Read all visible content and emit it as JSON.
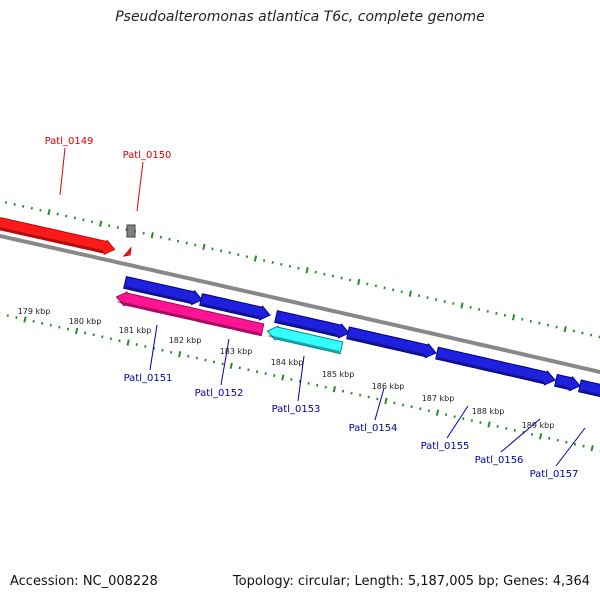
{
  "map": {
    "title": "Pseudoalteromonas atlantica T6c, complete genome",
    "accession": "Accession: NC_008228",
    "summary": "Topology: circular; Length: 5,187,005 bp; Genes: 4,364"
  },
  "colors": {
    "reverse_gene": "#ff1a1a",
    "forward_gene": "#1f1fe0",
    "pink_gene": "#ff1493",
    "cyan_gene": "#33ffff",
    "grey_gene": "#808080",
    "backbone": "#888888",
    "tick": "#2a8a2a",
    "label_reverse": "#dd0000",
    "label_forward": "#0000aa"
  },
  "genes_reverse": [
    {
      "name": "Patl_0149"
    },
    {
      "name": "Patl_0150"
    }
  ],
  "genes_forward": [
    {
      "name": "Patl_0151"
    },
    {
      "name": "Patl_0152"
    },
    {
      "name": "Patl_0153"
    },
    {
      "name": "Patl_0154"
    },
    {
      "name": "Patl_0155"
    },
    {
      "name": "Patl_0156"
    },
    {
      "name": "Patl_0157"
    }
  ],
  "kbp_labels": [
    "179 kbp",
    "180 kbp",
    "181 kbp",
    "182 kbp",
    "183 kbp",
    "184 kbp",
    "185 kbp",
    "186 kbp",
    "187 kbp",
    "188 kbp",
    "189 kbp"
  ]
}
